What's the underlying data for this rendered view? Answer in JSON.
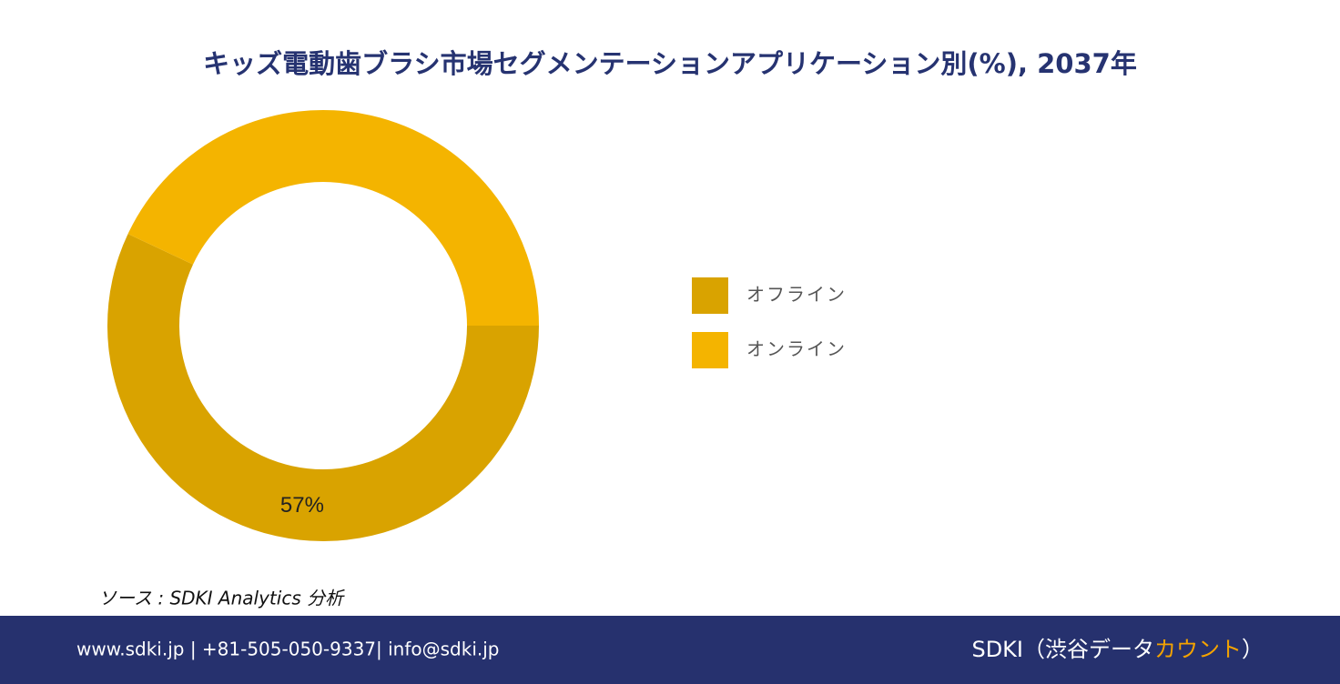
{
  "chart_data": {
    "type": "donut",
    "title": "キッズ電動歯ブラシ市場セグメンテーションアプリケーション別(%), 2037年",
    "categories": [
      "オフライン",
      "オンライン"
    ],
    "values": [
      57,
      43
    ],
    "value_labels": [
      "57%",
      null
    ],
    "colors": [
      "#D9A300",
      "#F4B400"
    ],
    "legend": "right"
  },
  "source": "ソース : SDKI Analytics 分析",
  "footer": {
    "contact": "www.sdki.jp | +81-505-050-9337| info@sdki.jp",
    "brand": {
      "prefix": "SDKI（渋谷データ",
      "highlight": "カウント",
      "suffix": "）"
    }
  }
}
